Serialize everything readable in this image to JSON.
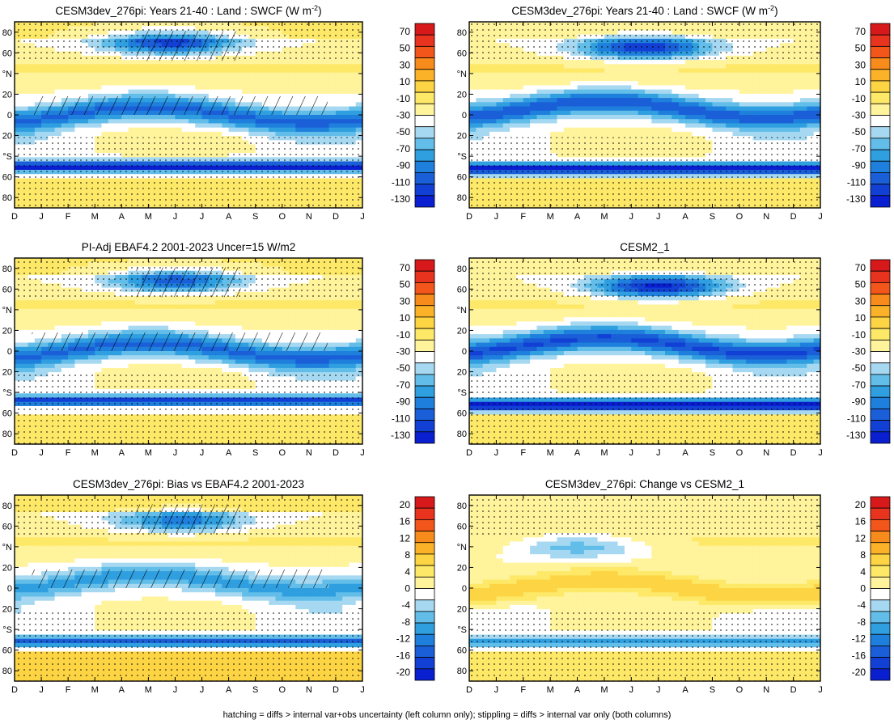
{
  "footer": "hatching = diffs > internal var+obs uncertainty (left column only); stippling = diffs > internal var only (both columns)",
  "colorbar_levels": {
    "fields": [
      "70",
      "50",
      "30",
      "10",
      "-10",
      "-30",
      "-50",
      "-70",
      "-90",
      "-110",
      "-130"
    ],
    "diffs": [
      "20",
      "16",
      "12",
      "8",
      "4",
      "0",
      "-4",
      "-8",
      "-12",
      "-16",
      "-20"
    ]
  },
  "colors": {
    "fields": [
      "#d7191c",
      "#e8331e",
      "#f2561b",
      "#f78b1c",
      "#fbb228",
      "#fdd544",
      "#fde868",
      "#fff39c",
      "#ffffff",
      "#a6d9f1",
      "#62bde9",
      "#2f9fe0",
      "#1f7fdc",
      "#1a5fd8",
      "#1240d4",
      "#0a1fd0"
    ],
    "diffs": [
      "#d7191c",
      "#e8331e",
      "#f2561b",
      "#f78b1c",
      "#fbb228",
      "#fdd544",
      "#fde868",
      "#fff39c",
      "#ffffff",
      "#a6d9f1",
      "#62bde9",
      "#2f9fe0",
      "#1f7fdc",
      "#1a5fd8",
      "#1240d4",
      "#0a1fd0"
    ]
  },
  "chart_data": [
    {
      "type": "heatmap",
      "title": "CESM3dev_276pi: Years 21-40 : Land : SWCF (W m",
      "title_sup": "-2",
      "title_end": ")",
      "x": [
        "D",
        "J",
        "F",
        "M",
        "A",
        "M",
        "J",
        "J",
        "A",
        "S",
        "O",
        "N",
        "D",
        "J"
      ],
      "y": [
        "80",
        "60",
        "°N",
        "20",
        "0",
        "20",
        "°S",
        "60",
        "80"
      ],
      "colorbar": "fields",
      "hatching": true,
      "features": {
        "nh_blob": {
          "center": [
            5.8,
            70
          ],
          "value": -70
        },
        "equator_band": {
          "lat": 0,
          "value": -55
        },
        "sh_band": {
          "lat": -50,
          "value": -90
        },
        "polar_south": {
          "value": 15
        },
        "polar_north": {
          "value": 12
        }
      }
    },
    {
      "type": "heatmap",
      "title": "CESM3dev_276pi: Years 21-40 : Land : SWCF (W m",
      "title_sup": "-2",
      "title_end": ")",
      "x": [
        "D",
        "J",
        "F",
        "M",
        "A",
        "M",
        "J",
        "J",
        "A",
        "S",
        "O",
        "N",
        "D",
        "J"
      ],
      "y": [
        "80",
        "60",
        "°N",
        "20",
        "0",
        "20",
        "°S",
        "60",
        "80"
      ],
      "colorbar": "fields",
      "hatching": false,
      "features": {
        "nh_blob": {
          "center": [
            6.5,
            65
          ],
          "value": -75
        },
        "equator_band": {
          "lat": 5,
          "value": -60
        },
        "sh_band": {
          "lat": -52,
          "value": -95
        },
        "polar_south": {
          "value": 12
        },
        "polar_north": {
          "value": 10
        }
      }
    },
    {
      "type": "heatmap",
      "title": "PI-Adj EBAF4.2 2001-2023 Uncer=15 W/m2",
      "x": [
        "D",
        "J",
        "F",
        "M",
        "A",
        "M",
        "J",
        "J",
        "A",
        "S",
        "O",
        "N",
        "D",
        "J"
      ],
      "y": [
        "80",
        "60",
        "°N",
        "20",
        "0",
        "20",
        "°S",
        "60",
        "80"
      ],
      "colorbar": "fields",
      "hatching": true,
      "features": {
        "nh_blob": {
          "center": [
            6.0,
            68
          ],
          "value": -60
        },
        "equator_band": {
          "lat": 0,
          "value": -55
        },
        "sh_band": {
          "lat": -48,
          "value": -70
        },
        "polar_south": {
          "value": 15
        },
        "polar_north": {
          "value": 12
        }
      }
    },
    {
      "type": "heatmap",
      "title": "CESM2_1",
      "x": [
        "D",
        "J",
        "F",
        "M",
        "A",
        "M",
        "J",
        "J",
        "A",
        "S",
        "O",
        "N",
        "D",
        "J"
      ],
      "y": [
        "80",
        "60",
        "°N",
        "20",
        "0",
        "20",
        "°S",
        "60",
        "80"
      ],
      "colorbar": "fields",
      "hatching": false,
      "features": {
        "nh_blob": {
          "center": [
            7.0,
            62
          ],
          "value": -80
        },
        "equator_band": {
          "lat": 5,
          "value": -65
        },
        "sh_band": {
          "lat": -52,
          "value": -100
        },
        "polar_south": {
          "value": 12
        },
        "polar_north": {
          "value": 10
        }
      }
    },
    {
      "type": "heatmap",
      "title": "CESM3dev_276pi: Bias vs EBAF4.2 2001-2023",
      "x": [
        "D",
        "J",
        "F",
        "M",
        "A",
        "M",
        "J",
        "J",
        "A",
        "S",
        "O",
        "N",
        "D",
        "J"
      ],
      "y": [
        "80",
        "60",
        "°N",
        "20",
        "0",
        "20",
        "°S",
        "60",
        "80"
      ],
      "colorbar": "diffs",
      "hatching": true,
      "features": {
        "nh_blob": {
          "center": [
            6.2,
            65
          ],
          "value": -14
        },
        "equator_band": {
          "lat": 5,
          "value": -10
        },
        "sh_band": {
          "lat": -52,
          "value": -16
        },
        "polar_south": {
          "value": 6
        },
        "polar_north": {
          "value": 5
        }
      }
    },
    {
      "type": "heatmap",
      "title": "CESM3dev_276pi: Change vs CESM2_1",
      "x": [
        "D",
        "J",
        "F",
        "M",
        "A",
        "M",
        "J",
        "J",
        "A",
        "S",
        "O",
        "N",
        "D",
        "J"
      ],
      "y": [
        "80",
        "60",
        "°N",
        "20",
        "0",
        "20",
        "°S",
        "60",
        "80"
      ],
      "colorbar": "diffs",
      "hatching": false,
      "features": {
        "nh_blob": {
          "center": [
            4.0,
            40
          ],
          "value": -10
        },
        "equator_band": {
          "lat": 0,
          "value": 8
        },
        "sh_band": {
          "lat": -52,
          "value": -12
        },
        "polar_south": {
          "value": 5
        },
        "polar_north": {
          "value": 0
        }
      }
    }
  ]
}
